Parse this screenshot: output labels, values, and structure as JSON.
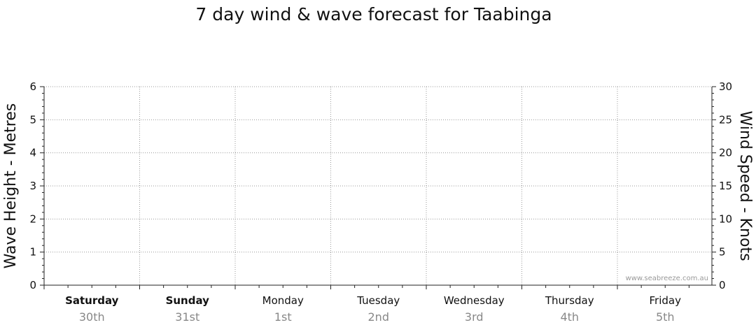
{
  "chart_data": {
    "type": "line",
    "title": "7 day wind & wave forecast for Taabinga",
    "left_axis": {
      "label": "Wave Height - Metres",
      "ylim": [
        0,
        6
      ],
      "ticks": [
        0,
        1,
        2,
        3,
        4,
        5,
        6
      ]
    },
    "right_axis": {
      "label": "Wind Speed - Knots",
      "ylim": [
        0,
        30
      ],
      "ticks": [
        0,
        5,
        10,
        15,
        20,
        25,
        30
      ]
    },
    "days": [
      {
        "name": "Saturday",
        "date": "30th",
        "bold": true
      },
      {
        "name": "Sunday",
        "date": "31st",
        "bold": true
      },
      {
        "name": "Monday",
        "date": "1st",
        "bold": false
      },
      {
        "name": "Tuesday",
        "date": "2nd",
        "bold": false
      },
      {
        "name": "Wednesday",
        "date": "3rd",
        "bold": false
      },
      {
        "name": "Thursday",
        "date": "4th",
        "bold": false
      },
      {
        "name": "Friday",
        "date": "5th",
        "bold": false
      }
    ],
    "series": [],
    "grid": true,
    "watermark": "www.seabreeze.com.au"
  },
  "colors": {
    "grid": "#9a9a9a",
    "axis": "#222222",
    "date_text": "#888888"
  }
}
